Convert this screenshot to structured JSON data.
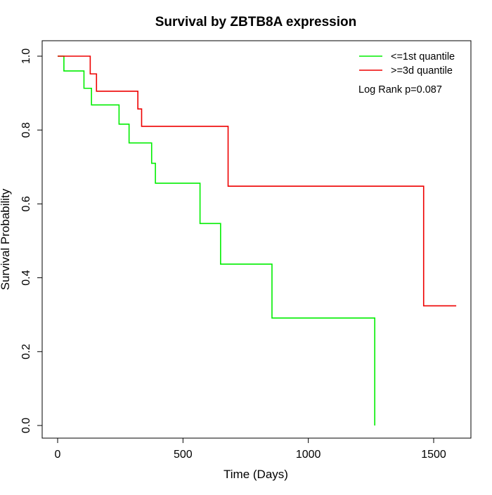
{
  "chart_data": {
    "type": "line",
    "title": "Survival by ZBTB8A expression",
    "xlabel": "Time (Days)",
    "ylabel": "Survival Probability",
    "xlim": [
      0,
      1650
    ],
    "ylim": [
      0,
      1.0
    ],
    "xticks": [
      0,
      500,
      1000,
      1500
    ],
    "yticks": [
      0.0,
      0.2,
      0.4,
      0.6,
      0.8,
      1.0
    ],
    "xtick_labels": [
      "0",
      "500",
      "1000",
      "1500"
    ],
    "ytick_labels": [
      "0.0",
      "0.2",
      "0.4",
      "0.6",
      "0.8",
      "1.0"
    ],
    "grid": false,
    "legend_position": "top-right",
    "annotation": "Log Rank p=0.087",
    "series": [
      {
        "name": "<=1st quantile",
        "color": "#00ee00",
        "step": true,
        "x": [
          0,
          25,
          105,
          135,
          245,
          285,
          375,
          390,
          568,
          650,
          855,
          1265,
          1265
        ],
        "y": [
          1.0,
          0.96,
          0.913,
          0.868,
          0.816,
          0.765,
          0.71,
          0.656,
          0.547,
          0.437,
          0.291,
          0.291,
          0.0
        ]
      },
      {
        "name": ">=3d quantile",
        "color": "#ee0000",
        "step": true,
        "x": [
          0,
          130,
          155,
          320,
          335,
          680,
          1460,
          1590
        ],
        "y": [
          1.0,
          0.952,
          0.905,
          0.857,
          0.81,
          0.648,
          0.324,
          0.324
        ]
      }
    ]
  }
}
